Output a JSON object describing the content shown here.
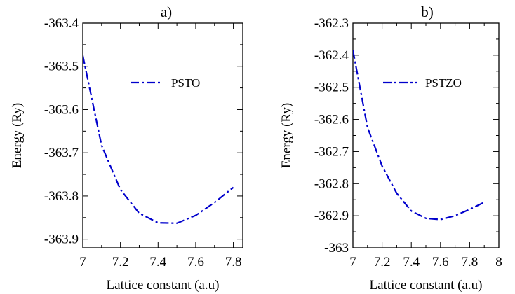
{
  "chart_data": [
    {
      "type": "line",
      "panel_label": "a)",
      "xlabel": "Lattice constant (a.u)",
      "ylabel": "Energy (Ry)",
      "xlim": [
        7.0,
        7.85
      ],
      "ylim": [
        -363.92,
        -363.4
      ],
      "xticks": [
        7,
        7.2,
        7.4,
        7.6,
        7.8
      ],
      "xtick_labels": [
        "7",
        "7.2",
        "7.4",
        "7.6",
        "7.8"
      ],
      "yticks": [
        -363.9,
        -363.8,
        -363.7,
        -363.6,
        -363.5,
        -363.4
      ],
      "ytick_labels": [
        "-363.9",
        "-363.8",
        "-363.7",
        "-363.6",
        "-363.5",
        "-363.4"
      ],
      "grid": false,
      "legend_position": "top-right",
      "series": [
        {
          "name": "PSTO",
          "color": "#0000cc",
          "style": "dash-dot",
          "x": [
            7.0,
            7.1,
            7.2,
            7.3,
            7.4,
            7.5,
            7.6,
            7.7,
            7.8
          ],
          "y": [
            -363.475,
            -363.683,
            -363.785,
            -363.84,
            -363.862,
            -363.863,
            -363.845,
            -363.815,
            -363.78
          ]
        }
      ]
    },
    {
      "type": "line",
      "panel_label": "b)",
      "xlabel": "Lattice constant (a.u)",
      "ylabel": "Energy (Ry)",
      "xlim": [
        7.0,
        8.0
      ],
      "ylim": [
        -363.0,
        -362.3
      ],
      "xticks": [
        7,
        7.2,
        7.4,
        7.6,
        7.8,
        8
      ],
      "xtick_labels": [
        "7",
        "7.2",
        "7.4",
        "7.6",
        "7.8",
        "8"
      ],
      "yticks": [
        -363.0,
        -362.9,
        -362.8,
        -362.7,
        -362.6,
        -362.5,
        -362.4,
        -362.3
      ],
      "ytick_labels": [
        "-363",
        "-362.9",
        "-362.8",
        "-362.7",
        "-362.6",
        "-362.5",
        "-362.4",
        "-362.3"
      ],
      "grid": false,
      "legend_position": "top-right",
      "series": [
        {
          "name": "PSTZO",
          "color": "#0000cc",
          "style": "dash-dot",
          "x": [
            7.0,
            7.1,
            7.2,
            7.3,
            7.4,
            7.5,
            7.6,
            7.7,
            7.8,
            7.9
          ],
          "y": [
            -362.385,
            -362.625,
            -362.745,
            -362.83,
            -362.885,
            -362.908,
            -362.912,
            -362.9,
            -362.88,
            -362.858
          ]
        }
      ]
    }
  ]
}
